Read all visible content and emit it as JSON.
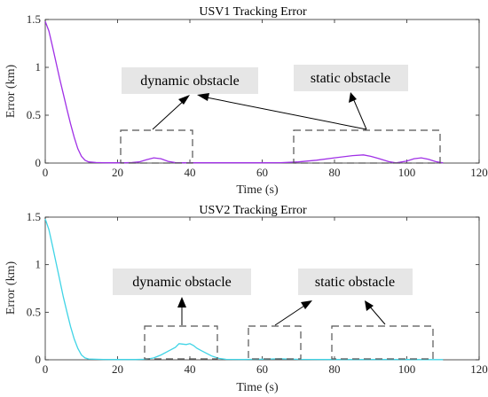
{
  "chart_data": [
    {
      "type": "line",
      "title": "USV1 Tracking Error",
      "xlabel": "Time (s)",
      "ylabel": "Error (km)",
      "xlim": [
        0,
        120
      ],
      "ylim": [
        0,
        1.5
      ],
      "xticks": [
        "0",
        "20",
        "40",
        "60",
        "80",
        "100",
        "120"
      ],
      "yticks": [
        "0",
        "0.5",
        "1",
        "1.5"
      ],
      "series": [
        {
          "color": "#a030e6",
          "x": [
            0,
            1,
            2,
            3,
            4,
            5,
            6,
            7,
            8,
            9,
            10,
            11,
            12,
            14,
            16,
            18,
            20,
            22,
            24,
            26,
            28,
            30,
            32,
            34,
            36,
            38,
            40,
            45,
            50,
            55,
            60,
            65,
            70,
            75,
            80,
            85,
            88,
            90,
            92,
            95,
            97,
            100,
            102,
            104,
            106,
            108,
            110
          ],
          "y": [
            1.48,
            1.38,
            1.22,
            1.05,
            0.88,
            0.72,
            0.56,
            0.41,
            0.27,
            0.15,
            0.07,
            0.03,
            0.012,
            0.006,
            0.004,
            0.003,
            0.003,
            0.003,
            0.006,
            0.012,
            0.035,
            0.055,
            0.045,
            0.018,
            0.005,
            0.003,
            0.003,
            0.003,
            0.003,
            0.003,
            0.003,
            0.004,
            0.012,
            0.03,
            0.055,
            0.078,
            0.085,
            0.07,
            0.05,
            0.015,
            0.002,
            0.02,
            0.045,
            0.055,
            0.04,
            0.015,
            0.002
          ]
        }
      ],
      "annotations": [
        {
          "label": "dynamic obstacle",
          "region_x": [
            21,
            41
          ]
        },
        {
          "label": "static obstacle",
          "region_x": [
            70,
            110
          ]
        }
      ]
    },
    {
      "type": "line",
      "title": "USV2 Tracking Error",
      "xlabel": "Time (s)",
      "ylabel": "Error (km)",
      "xlim": [
        0,
        120
      ],
      "ylim": [
        0,
        1.5
      ],
      "xticks": [
        "0",
        "20",
        "40",
        "60",
        "80",
        "100",
        "120"
      ],
      "yticks": [
        "0",
        "0.5",
        "1",
        "1.5"
      ],
      "series": [
        {
          "color": "#40d4e6",
          "x": [
            0,
            1,
            2,
            3,
            4,
            5,
            6,
            7,
            8,
            9,
            10,
            11,
            12,
            16,
            20,
            25,
            28,
            30,
            32,
            34,
            36,
            37,
            38,
            39,
            40,
            41,
            42,
            43,
            44,
            46,
            48,
            50,
            55,
            60,
            65,
            70,
            80,
            90,
            100,
            105,
            110
          ],
          "y": [
            1.48,
            1.37,
            1.2,
            1.02,
            0.84,
            0.66,
            0.5,
            0.35,
            0.22,
            0.12,
            0.05,
            0.02,
            0.008,
            0.004,
            0.003,
            0.003,
            0.006,
            0.02,
            0.05,
            0.09,
            0.13,
            0.17,
            0.165,
            0.16,
            0.17,
            0.15,
            0.12,
            0.1,
            0.08,
            0.04,
            0.015,
            0.005,
            0.004,
            0.006,
            0.01,
            0.005,
            0.003,
            0.003,
            0.003,
            0.002,
            0.002
          ]
        }
      ],
      "annotations": [
        {
          "label": "dynamic obstacle",
          "region_x": [
            28,
            48
          ]
        },
        {
          "label": "static obstacle",
          "region_x": [
            57,
            108
          ]
        }
      ]
    }
  ]
}
